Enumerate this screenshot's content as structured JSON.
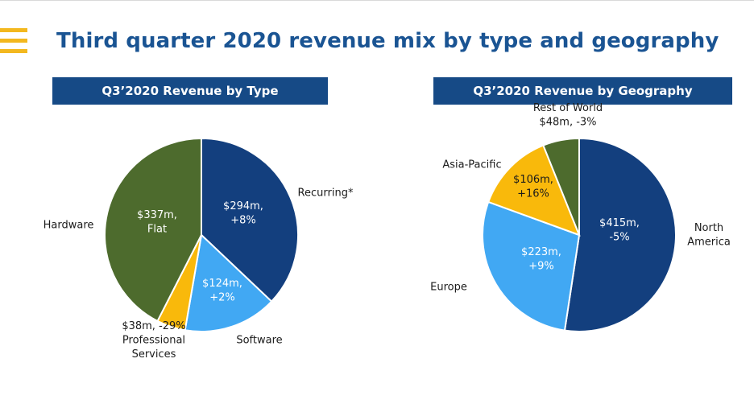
{
  "page": {
    "title": "Third quarter 2020 revenue mix by type and geography"
  },
  "colors": {
    "title": "#1a5493",
    "header_bg": "#164a86",
    "menu": "#f3b81f",
    "dark_blue": "#133f7e",
    "light_blue": "#41a8f3",
    "yellow": "#f9b90b",
    "green": "#4d6b2d"
  },
  "chart_data": [
    {
      "type": "pie",
      "title": "Q3’2020 Revenue by Type",
      "slices": [
        {
          "name": "Recurring*",
          "value": 294,
          "change": "+8%",
          "label_lines": [
            "$294m,",
            "+8%"
          ],
          "category_lines": [
            "Recurring*"
          ],
          "color": "#133f7e"
        },
        {
          "name": "Software",
          "value": 124,
          "change": "+2%",
          "label_lines": [
            "$124m,",
            "+2%"
          ],
          "category_lines": [
            "Software"
          ],
          "color": "#41a8f3"
        },
        {
          "name": "Professional Services",
          "value": 38,
          "change": "-29%",
          "label_lines": [],
          "category_lines": [
            "$38m, -29%",
            "Professional",
            "Services"
          ],
          "color": "#f9b90b"
        },
        {
          "name": "Hardware",
          "value": 337,
          "change": "Flat",
          "label_lines": [
            "$337m,",
            "Flat"
          ],
          "category_lines": [
            "Hardware"
          ],
          "color": "#4d6b2d"
        }
      ]
    },
    {
      "type": "pie",
      "title": "Q3’2020 Revenue by Geography",
      "slices": [
        {
          "name": "North America",
          "value": 415,
          "change": "-5%",
          "label_lines": [
            "$415m,",
            "-5%"
          ],
          "category_lines": [
            "North",
            "America"
          ],
          "color": "#133f7e"
        },
        {
          "name": "Europe",
          "value": 223,
          "change": "+9%",
          "label_lines": [
            "$223m,",
            "+9%"
          ],
          "category_lines": [
            "Europe"
          ],
          "color": "#41a8f3"
        },
        {
          "name": "Asia-Pacific",
          "value": 106,
          "change": "+16%",
          "label_lines": [
            "$106m,",
            "+16%"
          ],
          "category_lines": [
            "Asia-Pacific"
          ],
          "color": "#f9b90b"
        },
        {
          "name": "Rest of World",
          "value": 48,
          "change": "-3%",
          "label_lines": [],
          "category_lines": [
            "Rest of World",
            "$48m, -3%"
          ],
          "color": "#4d6b2d"
        }
      ]
    }
  ]
}
